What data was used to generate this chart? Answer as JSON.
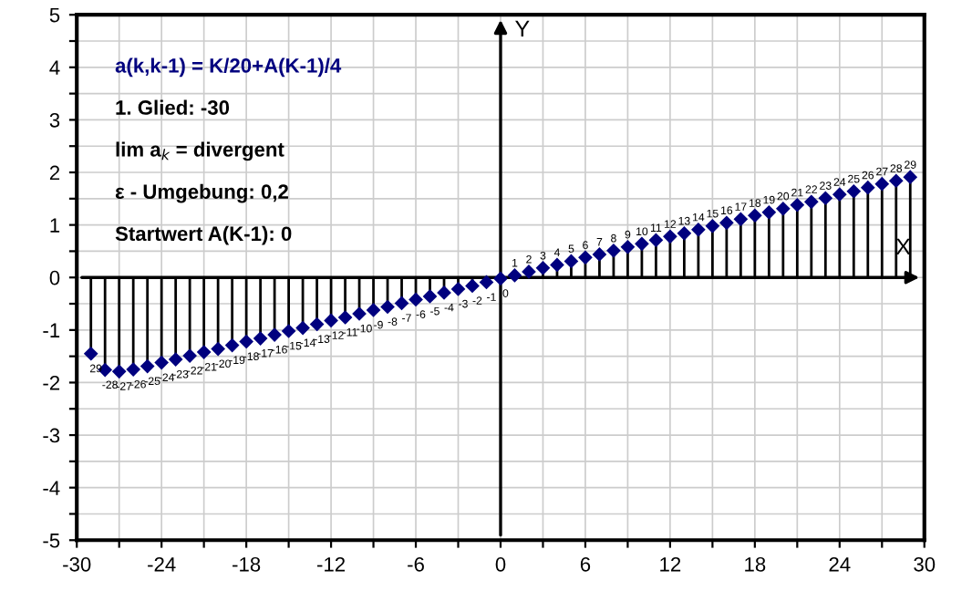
{
  "chart_data": {
    "type": "lollipop",
    "title": "a(k,k-1) = K/20+A(K-1)/4",
    "xlabel": "X",
    "ylabel": "Y",
    "x": [
      -29,
      -28,
      -27,
      -26,
      -25,
      -24,
      -23,
      -22,
      -21,
      -20,
      -19,
      -18,
      -17,
      -16,
      -15,
      -14,
      -13,
      -12,
      -11,
      -10,
      -9,
      -8,
      -7,
      -6,
      -5,
      -4,
      -3,
      -2,
      -1,
      0,
      1,
      2,
      3,
      4,
      5,
      6,
      7,
      8,
      9,
      10,
      11,
      12,
      13,
      14,
      15,
      16,
      17,
      18,
      19,
      20,
      21,
      22,
      23,
      24,
      25,
      26,
      27,
      28,
      29
    ],
    "series": [
      {
        "color": "#00007f",
        "values": [
          -1.45,
          -1.76,
          -1.79,
          -1.75,
          -1.69,
          -1.62,
          -1.56,
          -1.49,
          -1.42,
          -1.36,
          -1.29,
          -1.22,
          -1.16,
          -1.09,
          -1.02,
          -0.96,
          -0.89,
          -0.82,
          -0.76,
          -0.69,
          -0.62,
          -0.56,
          -0.49,
          -0.42,
          -0.36,
          -0.29,
          -0.22,
          -0.16,
          -0.09,
          -0.02,
          0.04,
          0.11,
          0.18,
          0.24,
          0.31,
          0.38,
          0.44,
          0.51,
          0.58,
          0.64,
          0.71,
          0.78,
          0.84,
          0.91,
          0.98,
          1.04,
          1.11,
          1.18,
          1.24,
          1.31,
          1.38,
          1.44,
          1.51,
          1.58,
          1.64,
          1.71,
          1.78,
          1.84,
          1.91
        ]
      }
    ],
    "marker": "diamond",
    "grid": true,
    "xlim": [
      -30,
      30
    ],
    "ylim": [
      -5,
      5
    ],
    "xticks": [
      -30,
      {
        "value": -27,
        "label": null
      },
      -24,
      {
        "value": -21,
        "label": null
      },
      -18,
      {
        "value": -15,
        "label": null
      },
      -12,
      {
        "value": -9,
        "label": null
      },
      -6,
      {
        "value": -3,
        "label": null
      },
      0,
      {
        "value": 3,
        "label": null
      },
      6,
      {
        "value": 9,
        "label": null
      },
      12,
      {
        "value": 15,
        "label": null
      },
      18,
      {
        "value": 21,
        "label": null
      },
      24,
      {
        "value": 27,
        "label": null
      },
      30
    ],
    "yticks": [
      -5,
      {
        "value": -4.5,
        "label": null
      },
      -4,
      {
        "value": -3.5,
        "label": null
      },
      -3,
      {
        "value": -2.5,
        "label": null
      },
      -2,
      {
        "value": -1.5,
        "label": null
      },
      -1,
      {
        "value": -0.5,
        "label": null
      },
      0,
      {
        "value": 0.5,
        "label": null
      },
      1,
      {
        "value": 1.5,
        "label": null
      },
      2,
      {
        "value": 2.5,
        "label": null
      },
      3,
      {
        "value": 3.5,
        "label": null
      },
      4,
      {
        "value": 4.5,
        "label": null
      },
      5
    ],
    "annotations": [
      "1. Glied: -30",
      "lim a$_{k}$ = divergent",
      "ε - Umgebung: 0,2",
      "Startwert A(K-1): 0",
      {
        "text": "29",
        "x": -29,
        "y": -1.45
      },
      {
        "text": "-28",
        "x": -28,
        "y": -1.76
      },
      {
        "text": "-27",
        "x": -27,
        "y": -1.79
      },
      {
        "text": "-26",
        "x": -26,
        "y": -1.75
      },
      {
        "text": "-25",
        "x": -25,
        "y": -1.69
      },
      {
        "text": "-24",
        "x": -24,
        "y": -1.62
      },
      {
        "text": "-23",
        "x": -23,
        "y": -1.56
      },
      {
        "text": "-22",
        "x": -22,
        "y": -1.49
      },
      {
        "text": "-21",
        "x": -21,
        "y": -1.42
      },
      {
        "text": "-20",
        "x": -20,
        "y": -1.36
      },
      {
        "text": "-19",
        "x": -19,
        "y": -1.29
      },
      {
        "text": "-18",
        "x": -18,
        "y": -1.22
      },
      {
        "text": "-17",
        "x": -17,
        "y": -1.16
      },
      {
        "text": "-16",
        "x": -16,
        "y": -1.09
      },
      {
        "text": "-15",
        "x": -15,
        "y": -1.02
      },
      {
        "text": "-14",
        "x": -14,
        "y": -0.96
      },
      {
        "text": "-13",
        "x": -13,
        "y": -0.89
      },
      {
        "text": "-12",
        "x": -12,
        "y": -0.82
      },
      {
        "text": "-11",
        "x": -11,
        "y": -0.76
      },
      {
        "text": "-10",
        "x": -10,
        "y": -0.69
      },
      {
        "text": "-9",
        "x": -9,
        "y": -0.62
      },
      {
        "text": "-8",
        "x": -8,
        "y": -0.56
      },
      {
        "text": "-7",
        "x": -7,
        "y": -0.49
      },
      {
        "text": "-6",
        "x": -6,
        "y": -0.42
      },
      {
        "text": "-5",
        "x": -5,
        "y": -0.36
      },
      {
        "text": "-4",
        "x": -4,
        "y": -0.29
      },
      {
        "text": "-3",
        "x": -3,
        "y": -0.22
      },
      {
        "text": "-2",
        "x": -2,
        "y": -0.16
      },
      {
        "text": "-1",
        "x": -1,
        "y": -0.09
      },
      {
        "text": "0",
        "x": 0,
        "y": -0.02
      },
      {
        "text": "1",
        "x": 1,
        "y": 0.04
      },
      {
        "text": "2",
        "x": 2,
        "y": 0.11
      },
      {
        "text": "3",
        "x": 3,
        "y": 0.18
      },
      {
        "text": "4",
        "x": 4,
        "y": 0.24
      },
      {
        "text": "5",
        "x": 5,
        "y": 0.31
      },
      {
        "text": "6",
        "x": 6,
        "y": 0.38
      },
      {
        "text": "7",
        "x": 7,
        "y": 0.44
      },
      {
        "text": "8",
        "x": 8,
        "y": 0.51
      },
      {
        "text": "9",
        "x": 9,
        "y": 0.58
      },
      {
        "text": "10",
        "x": 10,
        "y": 0.64
      },
      {
        "text": "11",
        "x": 11,
        "y": 0.71
      },
      {
        "text": "12",
        "x": 12,
        "y": 0.78
      },
      {
        "text": "13",
        "x": 13,
        "y": 0.84
      },
      {
        "text": "14",
        "x": 14,
        "y": 0.91
      },
      {
        "text": "15",
        "x": 15,
        "y": 0.98
      },
      {
        "text": "16",
        "x": 16,
        "y": 1.04
      },
      {
        "text": "17",
        "x": 17,
        "y": 1.11
      },
      {
        "text": "18",
        "x": 18,
        "y": 1.18
      },
      {
        "text": "19",
        "x": 19,
        "y": 1.24
      },
      {
        "text": "20",
        "x": 20,
        "y": 1.31
      },
      {
        "text": "21",
        "x": 21,
        "y": 1.38
      },
      {
        "text": "22",
        "x": 22,
        "y": 1.44
      },
      {
        "text": "23",
        "x": 23,
        "y": 1.51
      },
      {
        "text": "24",
        "x": 24,
        "y": 1.58
      },
      {
        "text": "25",
        "x": 25,
        "y": 1.64
      },
      {
        "text": "26",
        "x": 26,
        "y": 1.71
      },
      {
        "text": "27",
        "x": 27,
        "y": 1.78
      },
      {
        "text": "28",
        "x": 28,
        "y": 1.84
      },
      {
        "text": "29",
        "x": 29,
        "y": 1.91
      }
    ]
  }
}
